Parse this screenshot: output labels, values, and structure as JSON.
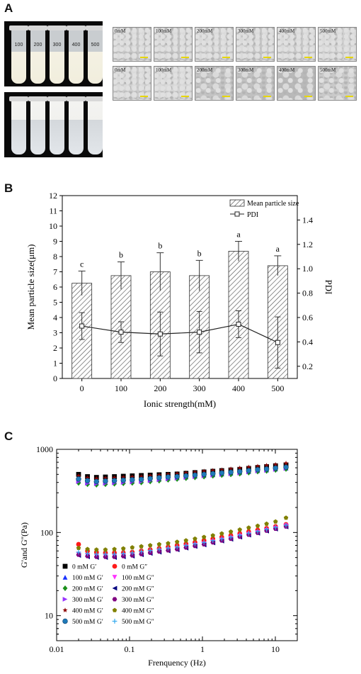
{
  "panel_letters": [
    "A",
    "B",
    "C"
  ],
  "panel_a": {
    "tube_labels": [
      "100",
      "200",
      "300",
      "400",
      "500"
    ],
    "micrographs_row1": [
      "0mM",
      "100mM",
      "200mM",
      "300mM",
      "400mM",
      "500mM"
    ],
    "micrographs_row2": [
      "0mM",
      "100mM",
      "200mM",
      "300mM",
      "400mM",
      "500mM"
    ],
    "scale_bar_color": "#e6d600"
  },
  "chart_data": [
    {
      "type": "bar",
      "categories": [
        "0",
        "100",
        "200",
        "300",
        "400",
        "500"
      ],
      "xlabel": "Ionic strength(mM)",
      "ylabel": "Mean particle size(μm)",
      "y2label": "PDI",
      "ylim": [
        0,
        12
      ],
      "y_ticks": [
        "0",
        "1",
        "2",
        "3",
        "4",
        "5",
        "6",
        "7",
        "8",
        "9",
        "10",
        "11",
        "12"
      ],
      "y2lim": [
        0.1,
        1.6
      ],
      "y2_ticks": [
        "0.2",
        "0.4",
        "0.6",
        "0.8",
        "1.0",
        "1.2",
        "1.4"
      ],
      "legend": [
        "Mean particle size",
        "PDI"
      ],
      "legend_position": "top-right",
      "series": [
        {
          "name": "Mean particle size",
          "values": [
            6.25,
            6.75,
            7.0,
            6.75,
            8.35,
            7.4
          ],
          "errors": [
            0.8,
            0.9,
            1.25,
            1.0,
            0.65,
            0.65
          ],
          "letters": [
            "c",
            "b",
            "b",
            "b",
            "a",
            "a"
          ]
        },
        {
          "name": "PDI",
          "type": "line",
          "values": [
            0.53,
            0.48,
            0.465,
            0.48,
            0.545,
            0.395
          ],
          "errors": [
            0.11,
            0.085,
            0.18,
            0.17,
            0.11,
            0.21
          ]
        }
      ]
    },
    {
      "type": "scatter",
      "xlabel": "Frenquency (Hz)",
      "ylabel": "G'and G''(Pa)",
      "x_scale": "log",
      "y_scale": "log",
      "xlim": [
        0.01,
        20
      ],
      "ylim": [
        5,
        1000
      ],
      "x_ticks": [
        "0.01",
        "0.1",
        "1",
        "10"
      ],
      "y_ticks": [
        "10",
        "100",
        "1000"
      ],
      "legend_position": "bottom-left",
      "x": [
        0.02,
        0.0265,
        0.0352,
        0.0467,
        0.062,
        0.0822,
        0.109,
        0.145,
        0.192,
        0.255,
        0.338,
        0.449,
        0.595,
        0.79,
        1.05,
        1.39,
        1.84,
        2.45,
        3.25,
        4.31,
        5.72,
        7.58,
        10.06,
        14.0
      ],
      "series": [
        {
          "name": "0 mM G′",
          "marker": "square",
          "color": "#000000",
          "values": [
            500,
            470,
            460,
            465,
            470,
            475,
            480,
            485,
            490,
            495,
            500,
            505,
            515,
            525,
            535,
            545,
            555,
            565,
            575,
            590,
            605,
            620,
            635,
            650
          ]
        },
        {
          "name": "0 mM G″",
          "marker": "circle",
          "color": "#ff1a1a",
          "values": [
            72,
            60,
            58,
            57,
            57,
            57,
            58,
            60,
            62,
            64,
            67,
            70,
            73,
            76,
            80,
            84,
            88,
            92,
            97,
            102,
            107,
            112,
            118,
            125
          ]
        },
        {
          "name": "100 mM G′",
          "marker": "triangle-up",
          "color": "#1a33ff",
          "values": [
            420,
            400,
            395,
            400,
            405,
            410,
            415,
            420,
            430,
            440,
            450,
            455,
            465,
            475,
            485,
            495,
            505,
            515,
            525,
            540,
            555,
            565,
            580,
            595
          ]
        },
        {
          "name": "100 mM G″",
          "marker": "triangle-down",
          "color": "#ff33ff",
          "values": [
            55,
            53,
            52,
            52,
            52,
            53,
            54,
            56,
            58,
            60,
            62,
            64,
            67,
            70,
            73,
            77,
            81,
            85,
            90,
            95,
            100,
            106,
            112,
            120
          ]
        },
        {
          "name": "200 mM G′",
          "marker": "diamond",
          "color": "#1a8f1a",
          "values": [
            395,
            380,
            375,
            380,
            385,
            390,
            395,
            400,
            410,
            420,
            430,
            440,
            450,
            460,
            470,
            480,
            490,
            500,
            510,
            525,
            540,
            550,
            565,
            580
          ]
        },
        {
          "name": "200 mM G″",
          "marker": "triangle-left",
          "color": "#000080",
          "values": [
            53,
            51,
            50,
            50,
            50,
            51,
            52,
            54,
            56,
            58,
            60,
            62,
            65,
            68,
            71,
            75,
            79,
            83,
            88,
            93,
            98,
            104,
            110,
            117
          ]
        },
        {
          "name": "300 mM G′",
          "marker": "triangle-right",
          "color": "#9933ff",
          "values": [
            410,
            390,
            385,
            390,
            395,
            400,
            405,
            410,
            420,
            430,
            440,
            450,
            460,
            470,
            480,
            490,
            500,
            510,
            520,
            535,
            550,
            560,
            575,
            590
          ]
        },
        {
          "name": "300 mM G″",
          "marker": "hexagon",
          "color": "#800080",
          "values": [
            54,
            52,
            51,
            51,
            51,
            52,
            53,
            55,
            57,
            59,
            61,
            63,
            66,
            69,
            72,
            76,
            80,
            84,
            89,
            94,
            99,
            105,
            111,
            118
          ]
        },
        {
          "name": "400 mM G′",
          "marker": "star",
          "color": "#8b0000",
          "values": [
            480,
            455,
            445,
            450,
            455,
            460,
            465,
            470,
            480,
            490,
            500,
            510,
            520,
            530,
            545,
            555,
            565,
            580,
            595,
            610,
            625,
            640,
            655,
            680
          ]
        },
        {
          "name": "400 mM G″",
          "marker": "pentagon",
          "color": "#808000",
          "values": [
            65,
            63,
            62,
            62,
            63,
            64,
            66,
            68,
            70,
            72,
            74,
            77,
            80,
            84,
            88,
            92,
            97,
            102,
            108,
            114,
            120,
            127,
            135,
            150
          ]
        },
        {
          "name": "500 mM G′",
          "marker": "sphere",
          "color": "#1f7ab8",
          "values": [
            440,
            420,
            410,
            415,
            420,
            425,
            430,
            435,
            445,
            455,
            465,
            470,
            480,
            490,
            500,
            510,
            520,
            530,
            540,
            555,
            570,
            580,
            595,
            610
          ]
        },
        {
          "name": "500 mM G″",
          "marker": "plus",
          "color": "#33aaee",
          "values": [
            58,
            56,
            55,
            55,
            55,
            56,
            57,
            59,
            61,
            63,
            65,
            67,
            70,
            73,
            76,
            80,
            84,
            88,
            93,
            98,
            103,
            109,
            115,
            122
          ]
        }
      ]
    }
  ]
}
